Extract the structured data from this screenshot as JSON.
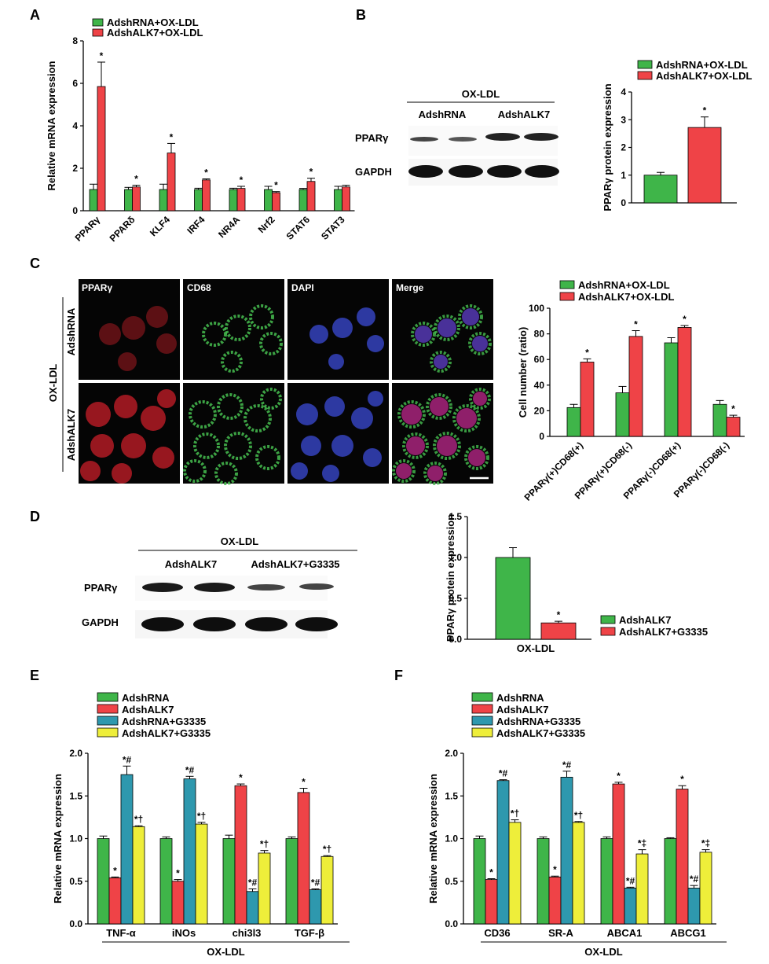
{
  "colors": {
    "green": "#3fb549",
    "red": "#ef4347",
    "teal": "#2e98ae",
    "yellow": "#eeee3a",
    "axis": "#000000"
  },
  "panels": {
    "A": {
      "letter": "A"
    },
    "B": {
      "letter": "B"
    },
    "C": {
      "letter": "C"
    },
    "D": {
      "letter": "D"
    },
    "E": {
      "letter": "E"
    },
    "F": {
      "letter": "F"
    }
  },
  "blots": {
    "B": {
      "header": "OX-LDL",
      "groups": [
        "AdshRNA",
        "AdshALK7"
      ],
      "rows": [
        "PPARγ",
        "GAPDH"
      ]
    },
    "D": {
      "header": "OX-LDL",
      "groups": [
        "AdshALK7",
        "AdshALK7+G3335"
      ],
      "rows": [
        "PPARγ",
        "GAPDH"
      ]
    }
  },
  "micro": {
    "columns": [
      "PPARγ",
      "CD68",
      "DAPI",
      "Merge"
    ],
    "rows": [
      "AdshRNA",
      "AdshALK7"
    ],
    "group_label": "OX-LDL"
  },
  "chart_data": [
    {
      "panel": "A",
      "type": "bar",
      "categories": [
        "PPARγ",
        "PPARδ",
        "KLF4",
        "IRF4",
        "NR4A",
        "Nrf2",
        "STAT6",
        "STAT3"
      ],
      "ylabel": "Relative mRNA expression",
      "xlabel": "",
      "ylim": [
        0,
        8
      ],
      "yticks": [
        "0",
        "2",
        "4",
        "6",
        "8"
      ],
      "legend_position": "top-left",
      "series": [
        {
          "name": "AdshRNA+OX-LDL",
          "values": [
            1.0,
            1.0,
            1.0,
            1.0,
            1.0,
            1.0,
            1.0,
            1.0
          ],
          "errors": [
            0.25,
            0.1,
            0.25,
            0.06,
            0.06,
            0.15,
            0.05,
            0.15
          ],
          "labels": [
            "",
            "",
            "",
            "",
            "",
            "",
            "",
            ""
          ]
        },
        {
          "name": "AdshALK7+OX-LDL",
          "values": [
            5.85,
            1.12,
            2.72,
            1.45,
            1.05,
            0.85,
            1.38,
            1.12
          ],
          "errors": [
            1.15,
            0.08,
            0.45,
            0.05,
            0.1,
            0.05,
            0.15,
            0.08
          ],
          "labels": [
            "*",
            "*",
            "*",
            "*",
            "*",
            "*",
            "*",
            ""
          ]
        }
      ]
    },
    {
      "panel": "B",
      "type": "bar",
      "categories": [
        ""
      ],
      "ylabel": "PPARγ protein expression",
      "xlabel": "",
      "ylim": [
        0,
        4
      ],
      "yticks": [
        "0",
        "1",
        "2",
        "3",
        "4"
      ],
      "legend_position": "top-right",
      "series": [
        {
          "name": "AdshRNA+OX-LDL",
          "values": [
            1.0
          ],
          "errors": [
            0.1
          ],
          "labels": [
            ""
          ]
        },
        {
          "name": "AdshALK7+OX-LDL",
          "values": [
            2.72
          ],
          "errors": [
            0.38
          ],
          "labels": [
            "*"
          ]
        }
      ]
    },
    {
      "panel": "C",
      "type": "bar",
      "categories": [
        "PPARγ(+)CD68(+)",
        "PPARγ(+)CD68(-)",
        "PPARγ(-)CD68(+)",
        "PPARγ(-)CD68(-)"
      ],
      "ylabel": "Cell number (ratio)",
      "xlabel": "",
      "ylim": [
        0,
        100
      ],
      "yticks": [
        "0",
        "20",
        "40",
        "60",
        "80",
        "100"
      ],
      "legend_position": "top-left",
      "series": [
        {
          "name": "AdshRNA+OX-LDL",
          "values": [
            22.5,
            34,
            73,
            25
          ],
          "errors": [
            2.5,
            5,
            4,
            3
          ],
          "labels": [
            "",
            "",
            "",
            ""
          ]
        },
        {
          "name": "AdshALK7+OX-LDL",
          "values": [
            58,
            78,
            85,
            15
          ],
          "errors": [
            2.5,
            4.5,
            1.5,
            1.5
          ],
          "labels": [
            "*",
            "*",
            "*",
            "*"
          ]
        }
      ]
    },
    {
      "panel": "D",
      "type": "bar",
      "categories": [
        "OX-LDL"
      ],
      "ylabel": "PPARγ protein expression",
      "xlabel": "",
      "ylim": [
        0,
        1.5
      ],
      "yticks": [
        "0.0",
        "0.5",
        "1.0",
        "1.5"
      ],
      "legend_position": "right",
      "series": [
        {
          "name": "AdshALK7",
          "values": [
            1.0
          ],
          "errors": [
            0.12
          ],
          "labels": [
            ""
          ]
        },
        {
          "name": "AdshALK7+G3335",
          "values": [
            0.2
          ],
          "errors": [
            0.02
          ],
          "labels": [
            "*"
          ]
        }
      ]
    },
    {
      "panel": "E",
      "type": "bar",
      "categories": [
        "TNF-α",
        "iNOs",
        "chi3l3",
        "TGF-β"
      ],
      "group_label": "OX-LDL",
      "ylabel": "Relative mRNA expression",
      "xlabel": "",
      "ylim": [
        0,
        2
      ],
      "yticks": [
        "0.0",
        "0.5",
        "1.0",
        "1.5",
        "2.0"
      ],
      "legend_position": "top-left",
      "series": [
        {
          "name": "AdshRNA",
          "values": [
            1.0,
            1.0,
            1.0,
            1.0
          ],
          "errors": [
            0.03,
            0.02,
            0.04,
            0.02
          ],
          "labels": [
            "",
            "",
            "",
            ""
          ]
        },
        {
          "name": "AdshALK7",
          "values": [
            0.54,
            0.5,
            1.62,
            1.54
          ],
          "errors": [
            0.01,
            0.02,
            0.02,
            0.05
          ],
          "labels": [
            "*",
            "*",
            "*",
            "*"
          ]
        },
        {
          "name": "AdshRNA+G3335",
          "values": [
            1.75,
            1.7,
            0.38,
            0.4
          ],
          "errors": [
            0.1,
            0.03,
            0.03,
            0.01
          ],
          "labels": [
            "*#",
            "*#",
            "*#",
            "*#"
          ]
        },
        {
          "name": "AdshALK7+G3335",
          "values": [
            1.14,
            1.17,
            0.83,
            0.79
          ],
          "errors": [
            0.01,
            0.02,
            0.03,
            0.01
          ],
          "labels": [
            "*†",
            "*†",
            "*†",
            "*†"
          ]
        }
      ]
    },
    {
      "panel": "F",
      "type": "bar",
      "categories": [
        "CD36",
        "SR-A",
        "ABCA1",
        "ABCG1"
      ],
      "group_label": "OX-LDL",
      "ylabel": "Relative mRNA expression",
      "xlabel": "",
      "ylim": [
        0,
        2
      ],
      "yticks": [
        "0.0",
        "0.5",
        "1.0",
        "1.5",
        "2.0"
      ],
      "legend_position": "top-left",
      "series": [
        {
          "name": "AdshRNA",
          "values": [
            1.0,
            1.0,
            1.0,
            1.0
          ],
          "errors": [
            0.03,
            0.02,
            0.02,
            0.01
          ],
          "labels": [
            "",
            "",
            "",
            ""
          ]
        },
        {
          "name": "AdshALK7",
          "values": [
            0.52,
            0.55,
            1.64,
            1.58
          ],
          "errors": [
            0.01,
            0.01,
            0.02,
            0.04
          ],
          "labels": [
            "*",
            "*",
            "*",
            "*"
          ]
        },
        {
          "name": "AdshRNA+G3335",
          "values": [
            1.68,
            1.72,
            0.42,
            0.42
          ],
          "errors": [
            0.01,
            0.07,
            0.01,
            0.03
          ],
          "labels": [
            "*#",
            "*#",
            "*#",
            "*#"
          ]
        },
        {
          "name": "AdshALK7+G3335",
          "values": [
            1.19,
            1.19,
            0.82,
            0.84
          ],
          "errors": [
            0.03,
            0.01,
            0.05,
            0.03
          ],
          "labels": [
            "*†",
            "*†",
            "*‡",
            "*‡"
          ]
        }
      ]
    }
  ]
}
